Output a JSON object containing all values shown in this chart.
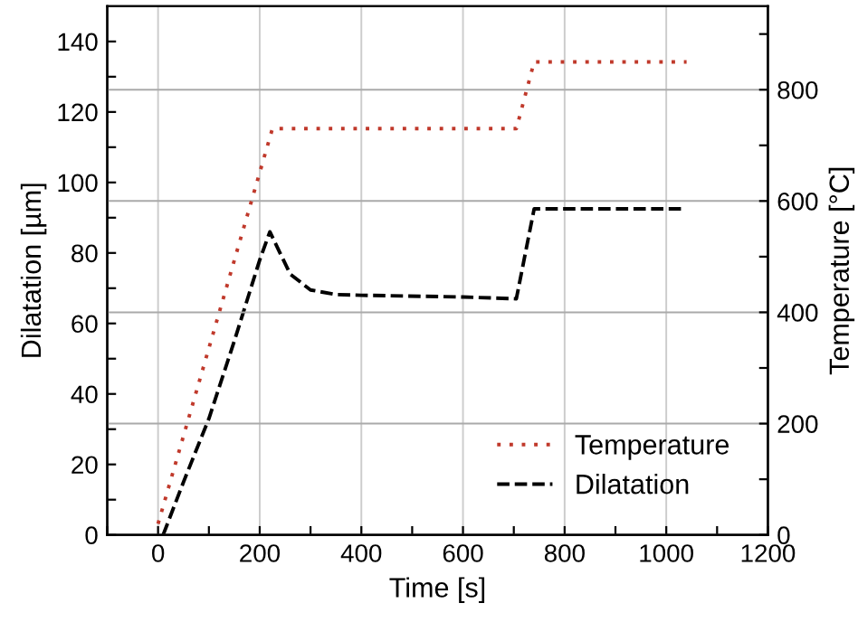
{
  "chart_data": {
    "type": "line",
    "xlabel": "Time [s]",
    "ylabel": "Dilatation [µm]",
    "y2label": "Temperature [°C]",
    "xlim": [
      -100,
      1200
    ],
    "xticks": [
      {
        "value": -100,
        "label": null
      },
      0,
      {
        "value": 100,
        "label": null
      },
      200,
      {
        "value": 300,
        "label": null
      },
      400,
      {
        "value": 500,
        "label": null
      },
      600,
      {
        "value": 700,
        "label": null
      },
      800,
      {
        "value": 900,
        "label": null
      },
      1000,
      {
        "value": 1100,
        "label": null
      },
      1200
    ],
    "ylim": [
      0,
      150
    ],
    "yticks": [
      0,
      {
        "value": 10,
        "label": null
      },
      20,
      {
        "value": 30,
        "label": null
      },
      40,
      {
        "value": 50,
        "label": null
      },
      60,
      {
        "value": 70,
        "label": null
      },
      80,
      {
        "value": 90,
        "label": null
      },
      100,
      {
        "value": 110,
        "label": null
      },
      120,
      {
        "value": 130,
        "label": null
      },
      140
    ],
    "y2lim": [
      0,
      950
    ],
    "y2ticks": [
      0,
      {
        "value": 100,
        "label": null
      },
      200,
      {
        "value": 300,
        "label": null
      },
      400,
      {
        "value": 500,
        "label": null
      },
      600,
      {
        "value": 700,
        "label": null
      },
      800,
      {
        "value": 900,
        "label": null
      }
    ],
    "grid": true,
    "legend": "bottom right",
    "series": [
      {
        "name": "Temperature",
        "color": "#c0392b",
        "axis": "y2",
        "line_style": "dotted",
        "x": [
          0,
          225,
          705,
          740,
          1040
        ],
        "values": [
          20,
          730,
          730,
          850,
          850
        ]
      },
      {
        "name": "Dilatation",
        "color": "#000000",
        "line_style": "dashed",
        "x": [
          10,
          50,
          100,
          150,
          200,
          220,
          240,
          260,
          300,
          350,
          400,
          600,
          705,
          740,
          1035
        ],
        "values": [
          0,
          15,
          33,
          55,
          78,
          86,
          80,
          74,
          69.5,
          68.2,
          68,
          67.5,
          67,
          92.5,
          92.5
        ]
      }
    ]
  }
}
